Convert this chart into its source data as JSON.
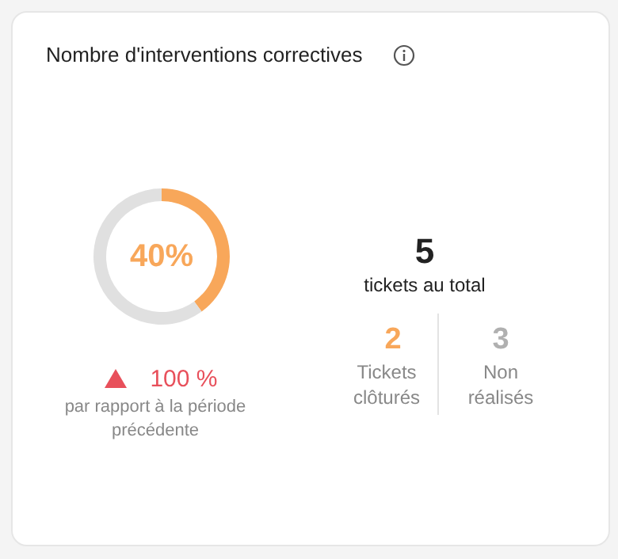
{
  "chart_data": {
    "type": "donut",
    "title": "Nombre d'interventions correctives",
    "categories": [
      null,
      null
    ],
    "values": [
      40,
      60
    ],
    "colors": [
      "#f8a75a",
      "#e0e0e0"
    ],
    "value_labels": [
      "40%",
      null
    ],
    "annotations": [
      "100 %",
      "par rapport à la période précédente",
      "5",
      "tickets au total",
      "2",
      "Tickets clôturés",
      "3",
      "Non réalisés"
    ]
  }
}
